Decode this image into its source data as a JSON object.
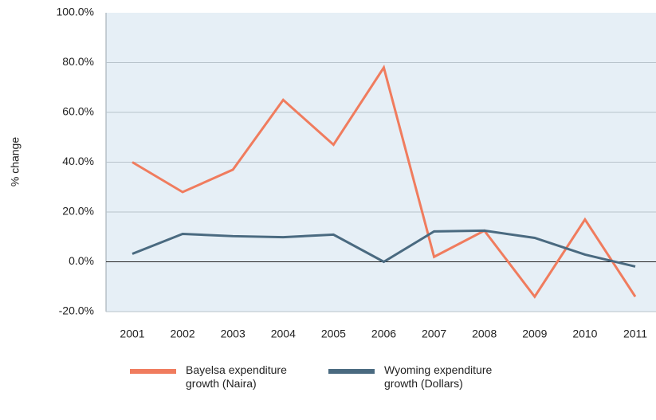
{
  "chart_data": {
    "type": "line",
    "y_label": "% change",
    "categories": [
      "2001",
      "2002",
      "2003",
      "2004",
      "2005",
      "2006",
      "2007",
      "2008",
      "2009",
      "2010",
      "2011"
    ],
    "series": [
      {
        "name": "Bayelsa expenditure growth (Naira)",
        "color": "#f07c5e",
        "values": [
          40,
          28,
          37,
          65,
          47,
          78,
          2,
          12.5,
          -14,
          17,
          -14
        ]
      },
      {
        "name": "Wyoming expenditure growth (Dollars)",
        "color": "#4a6a80",
        "values": [
          3.2,
          11.2,
          10.3,
          9.9,
          10.9,
          0,
          12.2,
          12.5,
          9.6,
          2.9,
          -1.9
        ]
      }
    ],
    "ylim": [
      -20,
      100
    ],
    "yticks": [
      {
        "value": -20,
        "label": "-20.0%"
      },
      {
        "value": 0,
        "label": "0.0%"
      },
      {
        "value": 20,
        "label": "20.0%"
      },
      {
        "value": 40,
        "label": "40.0%"
      },
      {
        "value": 60,
        "label": "60.0%"
      },
      {
        "value": 80,
        "label": "80.0%"
      },
      {
        "value": 100,
        "label": "100.0%"
      }
    ],
    "grid": true
  }
}
